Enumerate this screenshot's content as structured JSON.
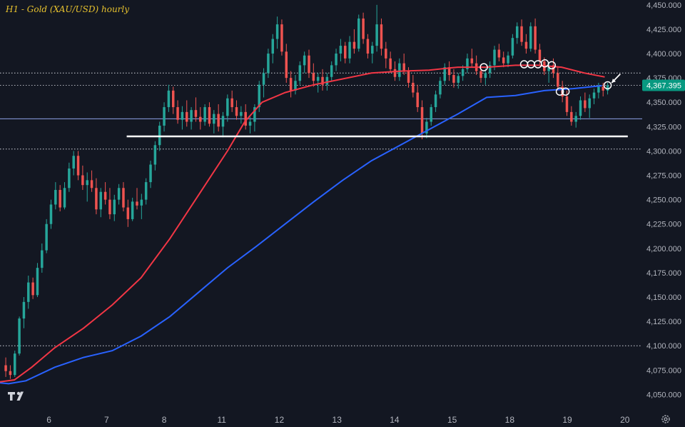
{
  "chart_data": {
    "type": "candlestick",
    "title": "H1 - Gold (XAU/USD) hourly",
    "y_ticks": [
      "4,450.000",
      "4,425.000",
      "4,400.000",
      "4,375.000",
      "4,350.000",
      "4,325.000",
      "4,300.000",
      "4,275.000",
      "4,250.000",
      "4,225.000",
      "4,200.000",
      "4,175.000",
      "4,150.000",
      "4,125.000",
      "4,100.000",
      "4,075.000",
      "4,050.000"
    ],
    "ylim": [
      4032,
      4455
    ],
    "x_ticks": [
      {
        "label": "6",
        "pos": 5.9
      },
      {
        "label": "7",
        "pos": 6.9
      },
      {
        "label": "8",
        "pos": 7.9
      },
      {
        "label": "11",
        "pos": 8.9
      },
      {
        "label": "12",
        "pos": 9.9
      },
      {
        "label": "13",
        "pos": 10.9
      },
      {
        "label": "14",
        "pos": 11.9
      },
      {
        "label": "15",
        "pos": 12.9
      },
      {
        "label": "18",
        "pos": 13.9
      },
      {
        "label": "19",
        "pos": 14.9
      },
      {
        "label": "20",
        "pos": 15.9
      }
    ],
    "xlim": [
      5.05,
      16.2
    ],
    "last_price": "4,367.395",
    "colors": {
      "up": "#26a69a",
      "down": "#ef5350",
      "ma_fast": "#f23645",
      "ma_slow": "#2962ff",
      "price_tag": "#089981",
      "background": "#131722"
    },
    "horizontal_levels": [
      {
        "value": 4380,
        "style": "dotted",
        "color": "#d1d4dc"
      },
      {
        "value": 4367.4,
        "style": "dotted",
        "color": "#b2b5be"
      },
      {
        "value": 4333,
        "style": "solid",
        "color": "#8ea2e8"
      },
      {
        "value": 4302,
        "style": "dotted",
        "color": "#d1d4dc"
      },
      {
        "value": 4100,
        "style": "dotted",
        "color": "#d1d4dc"
      }
    ],
    "support_line": {
      "x": [
        7.25,
        15.95
      ],
      "y": 4315,
      "color": "#ffffff"
    },
    "ma_fast": [
      [
        5.05,
        4063
      ],
      [
        5.3,
        4065
      ],
      [
        5.6,
        4078
      ],
      [
        6.0,
        4098
      ],
      [
        6.5,
        4118
      ],
      [
        7.0,
        4142
      ],
      [
        7.5,
        4170
      ],
      [
        8.0,
        4210
      ],
      [
        8.5,
        4255
      ],
      [
        9.0,
        4300
      ],
      [
        9.3,
        4330
      ],
      [
        9.6,
        4350
      ],
      [
        10.0,
        4360
      ],
      [
        10.5,
        4368
      ],
      [
        11.0,
        4374
      ],
      [
        11.5,
        4380
      ],
      [
        12.0,
        4382
      ],
      [
        12.5,
        4383
      ],
      [
        13.0,
        4386
      ],
      [
        13.5,
        4386
      ],
      [
        14.0,
        4388
      ],
      [
        14.4,
        4388
      ],
      [
        14.8,
        4386
      ],
      [
        15.2,
        4380
      ],
      [
        15.55,
        4376
      ]
    ],
    "ma_slow": [
      [
        5.05,
        4062
      ],
      [
        5.2,
        4061
      ],
      [
        5.5,
        4064
      ],
      [
        6.0,
        4078
      ],
      [
        6.5,
        4088
      ],
      [
        7.0,
        4095
      ],
      [
        7.5,
        4110
      ],
      [
        8.0,
        4130
      ],
      [
        8.5,
        4155
      ],
      [
        9.0,
        4180
      ],
      [
        9.5,
        4202
      ],
      [
        10.0,
        4225
      ],
      [
        10.5,
        4248
      ],
      [
        11.0,
        4270
      ],
      [
        11.5,
        4290
      ],
      [
        12.0,
        4306
      ],
      [
        12.5,
        4322
      ],
      [
        13.0,
        4338
      ],
      [
        13.5,
        4355
      ],
      [
        14.0,
        4357
      ],
      [
        14.5,
        4362
      ],
      [
        15.0,
        4364
      ],
      [
        15.5,
        4367
      ]
    ],
    "circles": [
      [
        13.45,
        4386
      ],
      [
        14.15,
        4389
      ],
      [
        14.27,
        4389
      ],
      [
        14.39,
        4389
      ],
      [
        14.51,
        4390
      ],
      [
        14.63,
        4388
      ],
      [
        14.77,
        4361
      ],
      [
        14.87,
        4361
      ],
      [
        15.6,
        4367.4
      ]
    ],
    "arrow": {
      "from": [
        15.82,
        4379
      ],
      "to": [
        15.67,
        4370
      ]
    },
    "candles": [
      [
        4080,
        4088,
        4068,
        4074
      ],
      [
        4074,
        4080,
        4066,
        4070
      ],
      [
        4070,
        4095,
        4068,
        4092
      ],
      [
        4092,
        4130,
        4090,
        4128
      ],
      [
        4128,
        4150,
        4118,
        4145
      ],
      [
        4145,
        4172,
        4138,
        4165
      ],
      [
        4165,
        4170,
        4148,
        4152
      ],
      [
        4152,
        4185,
        4150,
        4180
      ],
      [
        4180,
        4205,
        4175,
        4198
      ],
      [
        4198,
        4230,
        4195,
        4225
      ],
      [
        4225,
        4250,
        4220,
        4245
      ],
      [
        4245,
        4268,
        4240,
        4260
      ],
      [
        4260,
        4265,
        4238,
        4242
      ],
      [
        4242,
        4268,
        4240,
        4262
      ],
      [
        4262,
        4288,
        4258,
        4282
      ],
      [
        4282,
        4300,
        4275,
        4295
      ],
      [
        4295,
        4300,
        4270,
        4275
      ],
      [
        4275,
        4285,
        4260,
        4265
      ],
      [
        4265,
        4278,
        4248,
        4270
      ],
      [
        4270,
        4280,
        4258,
        4262
      ],
      [
        4262,
        4272,
        4235,
        4240
      ],
      [
        4240,
        4262,
        4232,
        4258
      ],
      [
        4258,
        4268,
        4245,
        4250
      ],
      [
        4250,
        4262,
        4230,
        4235
      ],
      [
        4235,
        4255,
        4228,
        4250
      ],
      [
        4250,
        4266,
        4245,
        4262
      ],
      [
        4262,
        4268,
        4238,
        4242
      ],
      [
        4242,
        4250,
        4222,
        4230
      ],
      [
        4230,
        4252,
        4228,
        4248
      ],
      [
        4248,
        4262,
        4240,
        4244
      ],
      [
        4244,
        4256,
        4230,
        4250
      ],
      [
        4250,
        4272,
        4245,
        4268
      ],
      [
        4268,
        4290,
        4262,
        4286
      ],
      [
        4286,
        4310,
        4280,
        4306
      ],
      [
        4306,
        4330,
        4300,
        4326
      ],
      [
        4326,
        4350,
        4320,
        4345
      ],
      [
        4345,
        4368,
        4340,
        4362
      ],
      [
        4362,
        4366,
        4338,
        4345
      ],
      [
        4345,
        4352,
        4328,
        4332
      ],
      [
        4332,
        4346,
        4322,
        4340
      ],
      [
        4340,
        4352,
        4325,
        4330
      ],
      [
        4330,
        4345,
        4322,
        4342
      ],
      [
        4342,
        4355,
        4330,
        4335
      ],
      [
        4335,
        4345,
        4322,
        4330
      ],
      [
        4330,
        4348,
        4326,
        4345
      ],
      [
        4345,
        4350,
        4325,
        4328
      ],
      [
        4328,
        4342,
        4318,
        4338
      ],
      [
        4338,
        4348,
        4320,
        4325
      ],
      [
        4325,
        4340,
        4314,
        4336
      ],
      [
        4336,
        4358,
        4330,
        4354
      ],
      [
        4354,
        4362,
        4340,
        4345
      ],
      [
        4345,
        4352,
        4332,
        4336
      ],
      [
        4336,
        4346,
        4328,
        4340
      ],
      [
        4340,
        4348,
        4322,
        4326
      ],
      [
        4326,
        4335,
        4318,
        4330
      ],
      [
        4330,
        4348,
        4320,
        4345
      ],
      [
        4345,
        4372,
        4340,
        4368
      ],
      [
        4368,
        4385,
        4355,
        4380
      ],
      [
        4380,
        4405,
        4375,
        4400
      ],
      [
        4400,
        4420,
        4390,
        4415
      ],
      [
        4415,
        4438,
        4405,
        4430
      ],
      [
        4430,
        4435,
        4398,
        4402
      ],
      [
        4402,
        4410,
        4370,
        4375
      ],
      [
        4375,
        4382,
        4355,
        4362
      ],
      [
        4362,
        4378,
        4358,
        4372
      ],
      [
        4372,
        4392,
        4368,
        4388
      ],
      [
        4388,
        4402,
        4380,
        4398
      ],
      [
        4398,
        4404,
        4375,
        4380
      ],
      [
        4380,
        4390,
        4366,
        4372
      ],
      [
        4372,
        4380,
        4360,
        4376
      ],
      [
        4376,
        4384,
        4362,
        4368
      ],
      [
        4368,
        4380,
        4362,
        4376
      ],
      [
        4376,
        4392,
        4372,
        4388
      ],
      [
        4388,
        4405,
        4382,
        4400
      ],
      [
        4400,
        4415,
        4392,
        4408
      ],
      [
        4408,
        4412,
        4390,
        4395
      ],
      [
        4395,
        4418,
        4390,
        4412
      ],
      [
        4412,
        4425,
        4400,
        4405
      ],
      [
        4405,
        4440,
        4402,
        4436
      ],
      [
        4436,
        4442,
        4410,
        4415
      ],
      [
        4415,
        4420,
        4395,
        4400
      ],
      [
        4400,
        4412,
        4390,
        4408
      ],
      [
        4408,
        4450,
        4402,
        4430
      ],
      [
        4430,
        4436,
        4398,
        4405
      ],
      [
        4405,
        4412,
        4385,
        4395
      ],
      [
        4395,
        4402,
        4380,
        4384
      ],
      [
        4384,
        4392,
        4372,
        4376
      ],
      [
        4376,
        4395,
        4372,
        4390
      ],
      [
        4390,
        4400,
        4378,
        4382
      ],
      [
        4382,
        4386,
        4365,
        4370
      ],
      [
        4370,
        4378,
        4355,
        4360
      ],
      [
        4360,
        4368,
        4340,
        4345
      ],
      [
        4345,
        4352,
        4312,
        4318
      ],
      [
        4318,
        4334,
        4313,
        4330
      ],
      [
        4330,
        4348,
        4326,
        4345
      ],
      [
        4345,
        4362,
        4340,
        4358
      ],
      [
        4358,
        4376,
        4354,
        4372
      ],
      [
        4372,
        4390,
        4368,
        4386
      ],
      [
        4386,
        4392,
        4372,
        4378
      ],
      [
        4378,
        4384,
        4365,
        4370
      ],
      [
        4370,
        4380,
        4364,
        4377
      ],
      [
        4377,
        4388,
        4372,
        4384
      ],
      [
        4384,
        4400,
        4380,
        4395
      ],
      [
        4395,
        4405,
        4386,
        4390
      ],
      [
        4390,
        4398,
        4378,
        4382
      ],
      [
        4382,
        4388,
        4370,
        4375
      ],
      [
        4375,
        4385,
        4368,
        4380
      ],
      [
        4380,
        4392,
        4375,
        4388
      ],
      [
        4388,
        4408,
        4383,
        4404
      ],
      [
        4404,
        4410,
        4392,
        4396
      ],
      [
        4396,
        4402,
        4386,
        4390
      ],
      [
        4390,
        4402,
        4386,
        4398
      ],
      [
        4398,
        4420,
        4395,
        4416
      ],
      [
        4416,
        4432,
        4410,
        4428
      ],
      [
        4428,
        4435,
        4408,
        4412
      ],
      [
        4412,
        4420,
        4400,
        4405
      ],
      [
        4405,
        4432,
        4402,
        4428
      ],
      [
        4428,
        4436,
        4400,
        4404
      ],
      [
        4404,
        4410,
        4388,
        4392
      ],
      [
        4392,
        4396,
        4378,
        4382
      ],
      [
        4382,
        4390,
        4370,
        4388
      ],
      [
        4388,
        4395,
        4375,
        4380
      ],
      [
        4380,
        4386,
        4362,
        4366
      ],
      [
        4366,
        4372,
        4350,
        4356
      ],
      [
        4356,
        4362,
        4336,
        4340
      ],
      [
        4340,
        4346,
        4326,
        4330
      ],
      [
        4330,
        4340,
        4324,
        4336
      ],
      [
        4336,
        4356,
        4332,
        4352
      ],
      [
        4352,
        4360,
        4340,
        4344
      ],
      [
        4344,
        4358,
        4334,
        4354
      ],
      [
        4354,
        4364,
        4348,
        4360
      ],
      [
        4360,
        4370,
        4354,
        4366
      ],
      [
        4366,
        4370,
        4356,
        4362
      ],
      [
        4362,
        4370,
        4358,
        4367.4
      ]
    ]
  }
}
